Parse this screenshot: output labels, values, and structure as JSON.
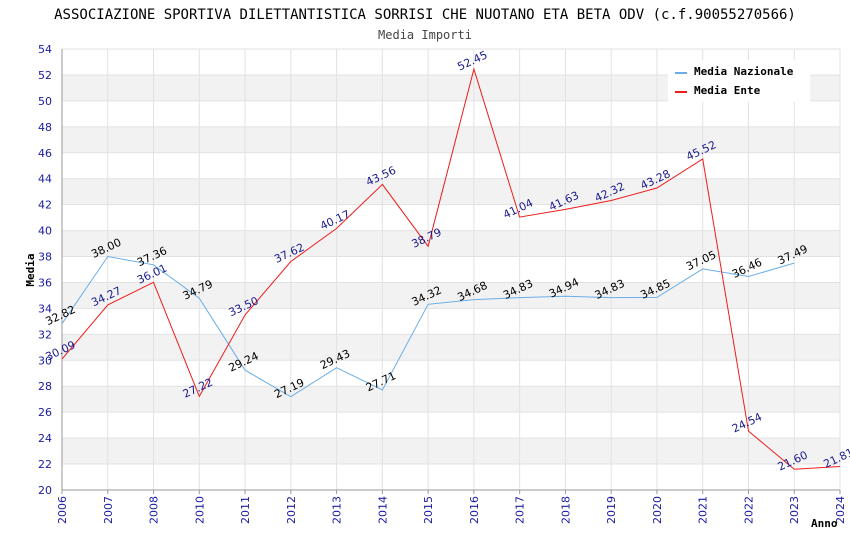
{
  "chart_data": {
    "type": "line",
    "title": "ASSOCIAZIONE SPORTIVA DILETTANTISTICA SORRISI CHE NUOTANO ETA BETA ODV (c.f.90055270566)",
    "subtitle": "Media Importi",
    "xlabel": "Anno",
    "ylabel": "Media",
    "ylim": [
      20,
      54
    ],
    "y_ticks": [
      "20",
      "22",
      "24",
      "26",
      "28",
      "30",
      "32",
      "34",
      "36",
      "38",
      "40",
      "42",
      "44",
      "46",
      "48",
      "50",
      "52",
      "54"
    ],
    "categories": [
      "2006",
      "2007",
      "2008",
      "2010",
      "2011",
      "2012",
      "2013",
      "2014",
      "2015",
      "2016",
      "2017",
      "2018",
      "2019",
      "2020",
      "2021",
      "2022",
      "2023",
      "2024"
    ],
    "series": [
      {
        "name": "Media Nazionale",
        "color": "#6aaee8",
        "label_color": "#000000",
        "values": [
          32.82,
          38.0,
          37.36,
          34.79,
          29.24,
          27.19,
          29.43,
          27.71,
          34.32,
          34.68,
          34.83,
          34.94,
          34.83,
          34.85,
          37.05,
          36.46,
          37.49,
          null
        ],
        "labels": [
          "32.82",
          "38.00",
          "37.36",
          "34.79",
          "29.24",
          "27.19",
          "29.43",
          "27.71",
          "34.32",
          "34.68",
          "34.83",
          "34.94",
          "34.83",
          "34.85",
          "37.05",
          "36.46",
          "37.49",
          null
        ]
      },
      {
        "name": "Media Ente",
        "color": "#ee1c1c",
        "label_color": "#1a1a8c",
        "values": [
          30.09,
          34.27,
          36.01,
          27.22,
          33.5,
          37.62,
          40.17,
          43.56,
          38.79,
          52.45,
          41.04,
          41.63,
          42.32,
          43.28,
          45.52,
          24.54,
          21.6,
          21.81
        ],
        "labels": [
          "30.09",
          "34.27",
          "36.01",
          "27.22",
          "33.50",
          "37.62",
          "40.17",
          "43.56",
          "38.79",
          "52.45",
          "41.04",
          "41.63",
          "42.32",
          "43.28",
          "45.52",
          "24.54",
          "21.60",
          "21.81"
        ]
      }
    ],
    "legend_position": "top-right",
    "grid": true
  }
}
